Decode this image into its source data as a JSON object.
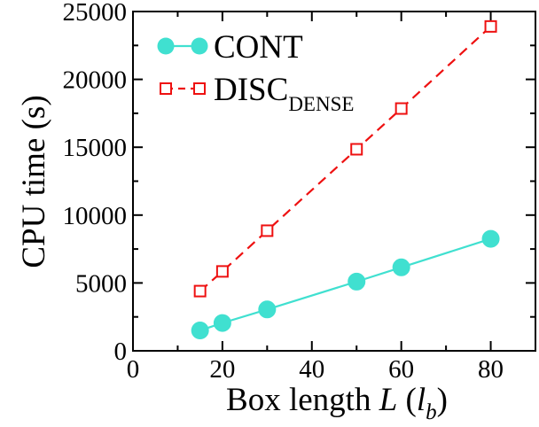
{
  "chart_data": {
    "type": "line",
    "xlabel": "Box length",
    "xlabel_var": "L",
    "xlabel_unit_open": "(",
    "xlabel_unit": "l",
    "xlabel_unit_sub": "b",
    "xlabel_unit_close": ")",
    "ylabel": "CPU time (s)",
    "xlim": [
      0,
      90
    ],
    "ylim": [
      0,
      25000
    ],
    "xticks": [
      0,
      20,
      40,
      60,
      80
    ],
    "yticks": [
      0,
      5000,
      10000,
      15000,
      20000,
      25000
    ],
    "xticks_minor": [
      10,
      30,
      50,
      70,
      90
    ],
    "yticks_minor": [
      2500,
      7500,
      12500,
      17500,
      22500
    ],
    "grid": false,
    "legend_position": "top-left",
    "series": [
      {
        "name": "CONT",
        "name_sub": "",
        "color": "#40e0d0",
        "line": "solid",
        "marker": "filled-circle",
        "x": [
          15,
          20,
          30,
          50,
          60,
          80
        ],
        "y": [
          1500,
          2050,
          3050,
          5100,
          6150,
          8250
        ]
      },
      {
        "name": "DISC",
        "name_sub": "DENSE",
        "color": "#ee1111",
        "line": "dashed",
        "marker": "open-square",
        "x": [
          15,
          20,
          30,
          50,
          60,
          80
        ],
        "y": [
          4400,
          5850,
          8850,
          14850,
          17850,
          23900
        ]
      }
    ]
  }
}
